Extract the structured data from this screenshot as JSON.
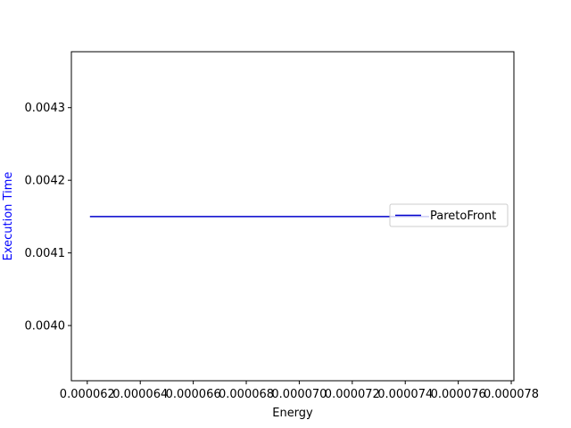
{
  "chart_data": {
    "type": "line",
    "title": "",
    "xlabel": "Energy",
    "ylabel": "Execution Time",
    "xlim": [
      6.14e-05,
      7.81e-05
    ],
    "ylim": [
      0.003924,
      0.004377
    ],
    "x_ticks": [
      6.2e-05,
      6.4e-05,
      6.6e-05,
      6.8e-05,
      7e-05,
      7.2e-05,
      7.4e-05,
      7.6e-05,
      7.8e-05
    ],
    "x_tick_labels": [
      "0.000062",
      "0.000064",
      "0.000066",
      "0.000068",
      "0.000070",
      "0.000072",
      "0.000074",
      "0.000076",
      "0.000078"
    ],
    "y_ticks": [
      0.004,
      0.0041,
      0.0042,
      0.0043
    ],
    "y_tick_labels": [
      "0.0040",
      "0.0041",
      "0.0042",
      "0.0043"
    ],
    "grid": false,
    "legend_position": "center-right",
    "series": [
      {
        "name": "ParetoFront",
        "color": "#0000cc",
        "x": [
          6.21e-05,
          7.49e-05
        ],
        "y": [
          0.00415,
          0.00415
        ]
      }
    ],
    "colors": {
      "ylabel": "#0000ff",
      "axis": "#000000"
    }
  }
}
